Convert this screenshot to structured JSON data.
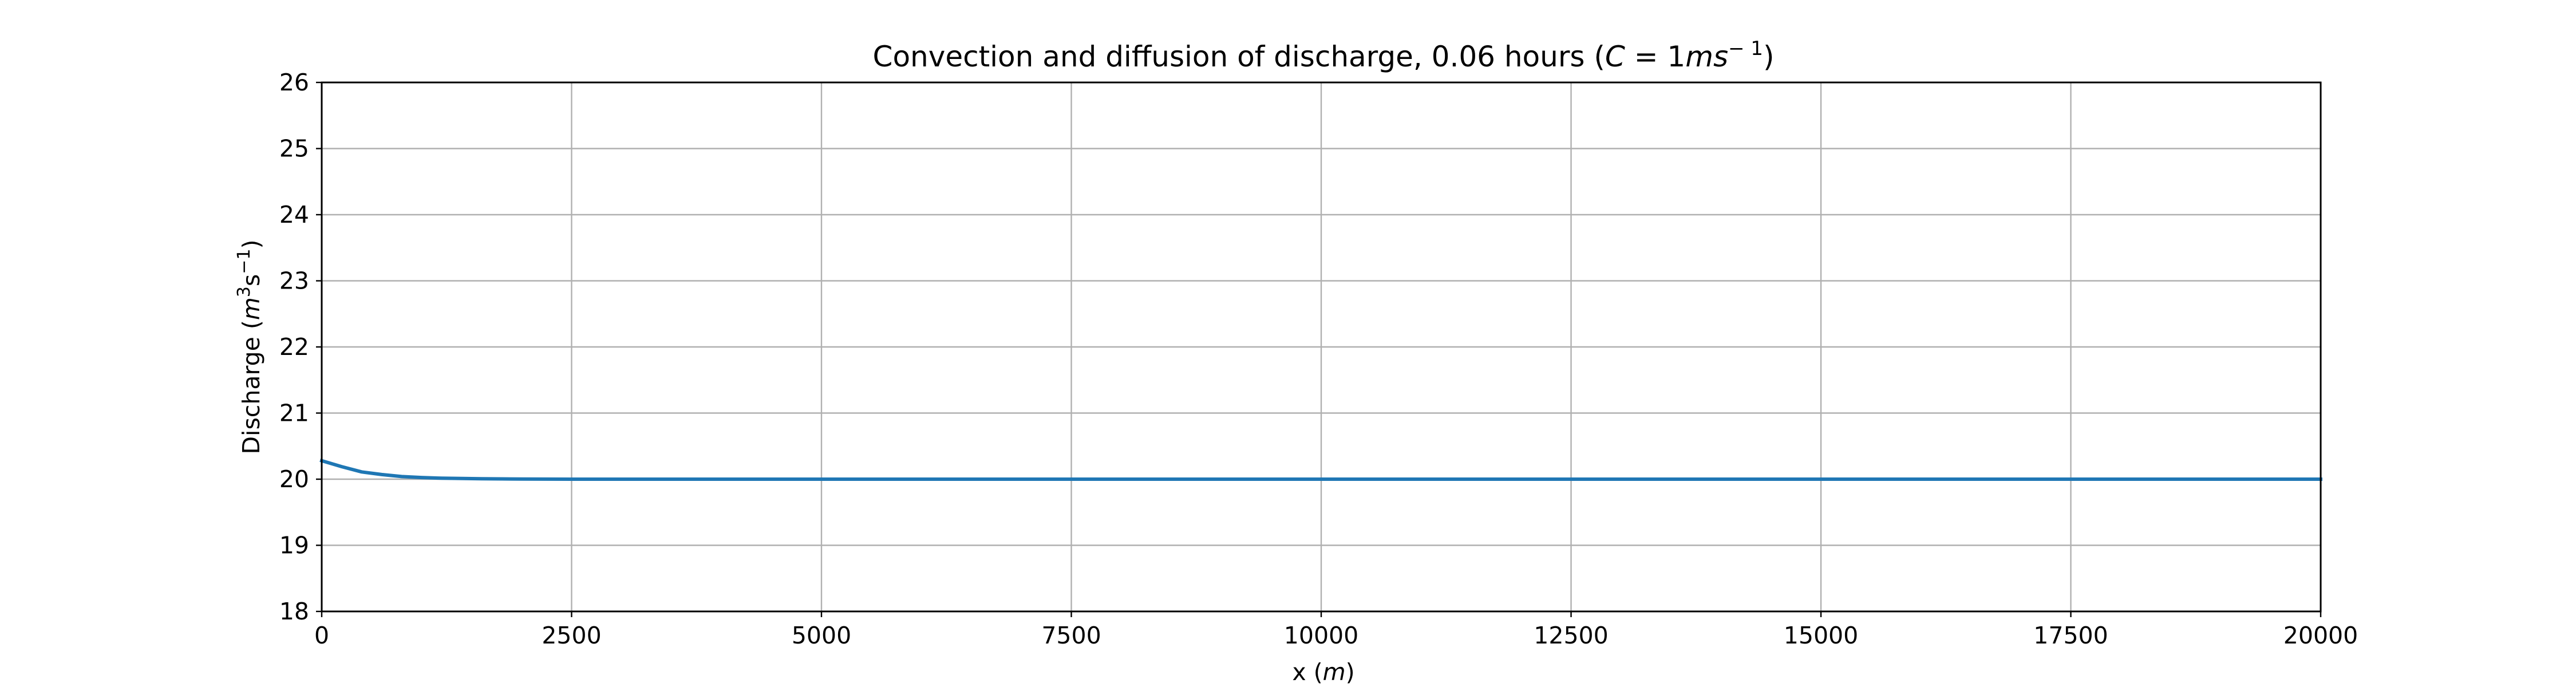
{
  "chart_data": {
    "type": "line",
    "title": {
      "prefix": "Convection and diffusion of discharge, 0.06 hours (",
      "math_lhs": "C",
      "math_eq": " = 1",
      "math_unit": "ms",
      "sup": "− 1",
      "suffix": ")"
    },
    "xlabel": {
      "prefix": "x (",
      "math": "m",
      "suffix": ")"
    },
    "ylabel": {
      "prefix": "Discharge (",
      "m": "m",
      "sup3": "3",
      "s": "s",
      "supneg": "−1",
      "suffix": ")"
    },
    "xlim": [
      0,
      20000
    ],
    "ylim": [
      18,
      26
    ],
    "xticks": [
      0,
      2500,
      5000,
      7500,
      10000,
      12500,
      15000,
      17500,
      20000
    ],
    "yticks": [
      18,
      19,
      20,
      21,
      22,
      23,
      24,
      25,
      26
    ],
    "grid": true,
    "series": [
      {
        "color": "#1f77b4",
        "x": [
          0,
          200,
          400,
          600,
          800,
          1000,
          1200,
          1400,
          1600,
          1800,
          2000,
          2500,
          3000,
          5000,
          7500,
          10000,
          12500,
          15000,
          17500,
          20000
        ],
        "y": [
          20.28,
          20.19,
          20.11,
          20.07,
          20.04,
          20.025,
          20.015,
          20.01,
          20.006,
          20.004,
          20.002,
          20.0,
          20.0,
          20.0,
          20.0,
          20.0,
          20.0,
          20.0,
          20.0,
          20.0
        ]
      }
    ]
  }
}
